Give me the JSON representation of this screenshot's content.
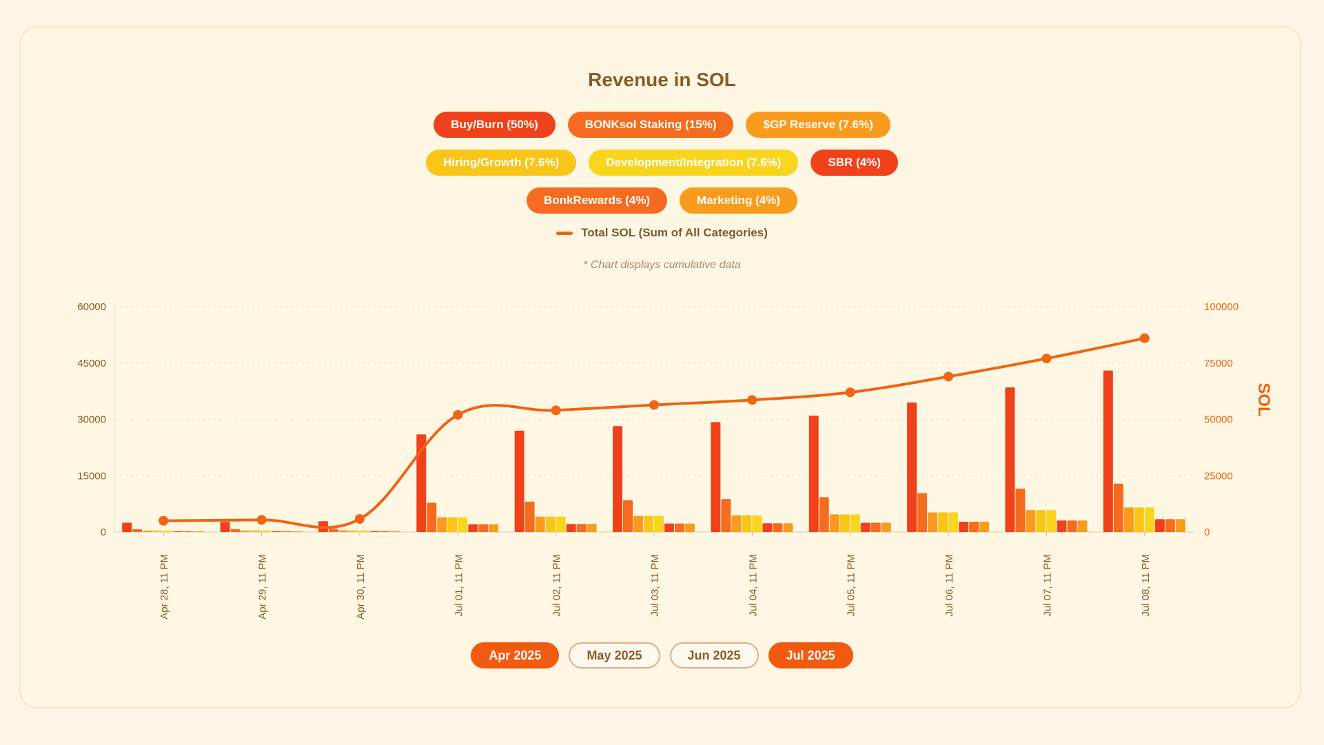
{
  "chart_data": {
    "type": "bar",
    "title": "Revenue in SOL",
    "note": "* Chart displays cumulative data",
    "categories": [
      "Apr 28, 11 PM",
      "Apr 29, 11 PM",
      "Apr 30, 11 PM",
      "Jul 01, 11 PM",
      "Jul 02, 11 PM",
      "Jul 03, 11 PM",
      "Jul 04, 11 PM",
      "Jul 05, 11 PM",
      "Jul 06, 11 PM",
      "Jul 07, 11 PM",
      "Jul 08, 11 PM"
    ],
    "ylim_left": [
      0,
      60000
    ],
    "yticks_left": [
      "0",
      "15000",
      "30000",
      "45000",
      "60000"
    ],
    "ylim_right": [
      0,
      100000
    ],
    "yticks_right": [
      "0",
      "25000",
      "50000",
      "75000",
      "100000"
    ],
    "ylabel_right": "SOL",
    "grid": true,
    "series": [
      {
        "name": "Buy/Burn (50%)",
        "color": "#f0421a",
        "values": [
          2500,
          2700,
          2900,
          26000,
          27000,
          28200,
          29300,
          31000,
          34500,
          38500,
          43000
        ]
      },
      {
        "name": "BONKsol Staking (15%)",
        "color": "#f56b1f",
        "values": [
          750,
          810,
          870,
          7800,
          8100,
          8460,
          8790,
          9300,
          10350,
          11550,
          12900
        ]
      },
      {
        "name": "$GP Reserve (7.6%)",
        "color": "#f99b1c",
        "values": [
          380,
          410,
          440,
          3950,
          4100,
          4290,
          4450,
          4710,
          5240,
          5850,
          6540
        ]
      },
      {
        "name": "Hiring/Growth (7.6%)",
        "color": "#f9c518",
        "values": [
          380,
          410,
          440,
          3950,
          4100,
          4290,
          4450,
          4710,
          5240,
          5850,
          6540
        ]
      },
      {
        "name": "Development/Integration (7.6%)",
        "color": "#f9d51e",
        "values": [
          380,
          410,
          440,
          3950,
          4100,
          4290,
          4450,
          4710,
          5240,
          5850,
          6540
        ]
      },
      {
        "name": "SBR (4%)",
        "color": "#f0421a",
        "values": [
          200,
          216,
          232,
          2080,
          2160,
          2260,
          2340,
          2480,
          2760,
          3080,
          3440
        ]
      },
      {
        "name": "BonkRewards (4%)",
        "color": "#f56b1f",
        "values": [
          200,
          216,
          232,
          2080,
          2160,
          2260,
          2340,
          2480,
          2760,
          3080,
          3440
        ]
      },
      {
        "name": "Marketing (4%)",
        "color": "#f99b1c",
        "values": [
          200,
          216,
          232,
          2080,
          2160,
          2260,
          2340,
          2480,
          2760,
          3080,
          3440
        ]
      }
    ],
    "line_series": {
      "name": "Total SOL (Sum of All Categories)",
      "color": "#f06414",
      "axis": "right",
      "values": [
        5000,
        5400,
        5800,
        52000,
        54000,
        56400,
        58600,
        62000,
        69000,
        77000,
        86000
      ]
    }
  },
  "legend": {
    "rows": [
      [
        {
          "label": "Buy/Burn (50%)",
          "color": "#f0421a"
        },
        {
          "label": "BONKsol Staking (15%)",
          "color": "#f56b1f"
        },
        {
          "label": "$GP Reserve (7.6%)",
          "color": "#f99b1c"
        }
      ],
      [
        {
          "label": "Hiring/Growth (7.6%)",
          "color": "#f9c518"
        },
        {
          "label": "Development/Integration (7.6%)",
          "color": "#f9d51e"
        },
        {
          "label": "SBR (4%)",
          "color": "#f0421a"
        }
      ],
      [
        {
          "label": "BonkRewards (4%)",
          "color": "#f56b1f"
        },
        {
          "label": "Marketing (4%)",
          "color": "#f99b1c"
        }
      ]
    ],
    "total_label": "Total SOL (Sum of All Categories)"
  },
  "months": [
    {
      "label": "Apr 2025",
      "active": true
    },
    {
      "label": "May 2025",
      "active": false
    },
    {
      "label": "Jun 2025",
      "active": false
    },
    {
      "label": "Jul 2025",
      "active": true
    }
  ]
}
